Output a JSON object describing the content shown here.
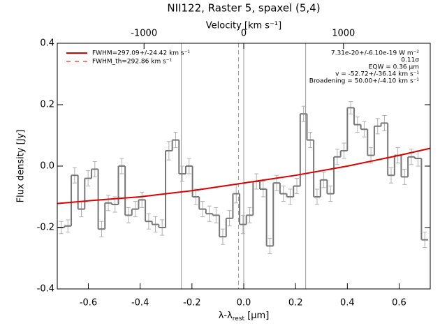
{
  "chart_data": {
    "type": "step",
    "title": "NII122, Raster 5, spaxel (5,4)",
    "x_label": {
      "main": "λ-λ",
      "sub": "rest",
      "unit": " [μm]"
    },
    "y_label": "Flux density [Jy]",
    "x2_label": "Velocity [km s⁻¹]",
    "xlim": [
      -0.72,
      0.72
    ],
    "ylim": [
      -0.4,
      0.4
    ],
    "x2lim": [
      -1870,
      1870
    ],
    "xticks": [
      -0.6,
      -0.4,
      -0.2,
      {
        "value": 0,
        "label": "0.0"
      },
      0.2,
      0.4,
      0.6
    ],
    "yticks": [
      -0.4,
      -0.2,
      {
        "value": 0,
        "label": "0.0"
      },
      0.2,
      0.4
    ],
    "x2ticks": [
      -1000,
      0,
      1000
    ],
    "x": [
      -0.705,
      -0.679,
      -0.653,
      -0.627,
      -0.601,
      -0.575,
      -0.549,
      -0.523,
      -0.497,
      -0.471,
      -0.445,
      -0.419,
      -0.393,
      -0.367,
      -0.341,
      -0.315,
      -0.289,
      -0.263,
      -0.237,
      -0.211,
      -0.185,
      -0.159,
      -0.133,
      -0.107,
      -0.081,
      -0.055,
      -0.029,
      -0.003,
      0.023,
      0.049,
      0.075,
      0.101,
      0.127,
      0.153,
      0.179,
      0.205,
      0.231,
      0.257,
      0.283,
      0.309,
      0.335,
      0.361,
      0.387,
      0.413,
      0.439,
      0.465,
      0.491,
      0.517,
      0.543,
      0.569,
      0.595,
      0.621,
      0.647,
      0.673,
      0.699
    ],
    "bin_width": 0.026,
    "values": [
      -0.2,
      -0.195,
      -0.03,
      -0.14,
      -0.04,
      -0.01,
      -0.205,
      -0.12,
      -0.125,
      0.0,
      -0.16,
      -0.14,
      -0.11,
      -0.18,
      -0.19,
      -0.2,
      0.05,
      0.085,
      -0.025,
      0.0,
      -0.1,
      -0.14,
      -0.155,
      -0.16,
      -0.23,
      -0.17,
      -0.09,
      -0.19,
      -0.16,
      -0.05,
      -0.075,
      -0.26,
      -0.055,
      -0.09,
      -0.1,
      -0.065,
      0.17,
      0.085,
      -0.1,
      -0.045,
      -0.09,
      0.03,
      0.05,
      0.19,
      0.135,
      0.12,
      0.035,
      0.13,
      0.14,
      -0.03,
      0.035,
      -0.035,
      0.03,
      0.025,
      -0.24
    ],
    "errors": [
      0.02,
      0.02,
      0.025,
      0.025,
      0.025,
      0.025,
      0.025,
      0.025,
      0.025,
      0.025,
      0.025,
      0.025,
      0.025,
      0.025,
      0.025,
      0.025,
      0.03,
      0.025,
      0.025,
      0.025,
      0.025,
      0.025,
      0.025,
      0.025,
      0.025,
      0.025,
      0.03,
      0.03,
      0.025,
      0.025,
      0.025,
      0.025,
      0.025,
      0.025,
      0.025,
      0.025,
      0.025,
      0.025,
      0.025,
      0.025,
      0.025,
      0.025,
      0.025,
      0.02,
      0.025,
      0.025,
      0.025,
      0.025,
      0.025,
      0.025,
      0.025,
      0.025,
      0.025,
      0.025,
      0.025
    ],
    "step_color": "#777777",
    "error_color": "#b0b0b0",
    "fit": {
      "x": [
        -0.72,
        -0.6,
        -0.4,
        -0.2,
        0,
        0.2,
        0.4,
        0.6,
        0.72
      ],
      "y": [
        -0.122,
        -0.113,
        -0.1,
        -0.08,
        -0.055,
        -0.03,
        0.0,
        0.035,
        0.058
      ],
      "color": "#dd0000"
    },
    "vlines": [
      -0.241,
      0.0,
      0.239
    ],
    "vline_dashed": [
      -0.02
    ],
    "vline_color": "#999999",
    "legend": [
      {
        "label": "FWHM=297.09+/-24.42 km s⁻¹",
        "style": "solid"
      },
      {
        "label": "FWHM_th=292.86 km s⁻¹",
        "style": "dashed"
      }
    ],
    "annotations": [
      "7.31e-20+/-6.10e-19 W m⁻²",
      "0.11σ",
      "EQW = 0.36 μm",
      "v = -52.72+/-36.14 km s⁻¹",
      "Broadening = 50.00+/-4.10 km s⁻¹"
    ]
  }
}
